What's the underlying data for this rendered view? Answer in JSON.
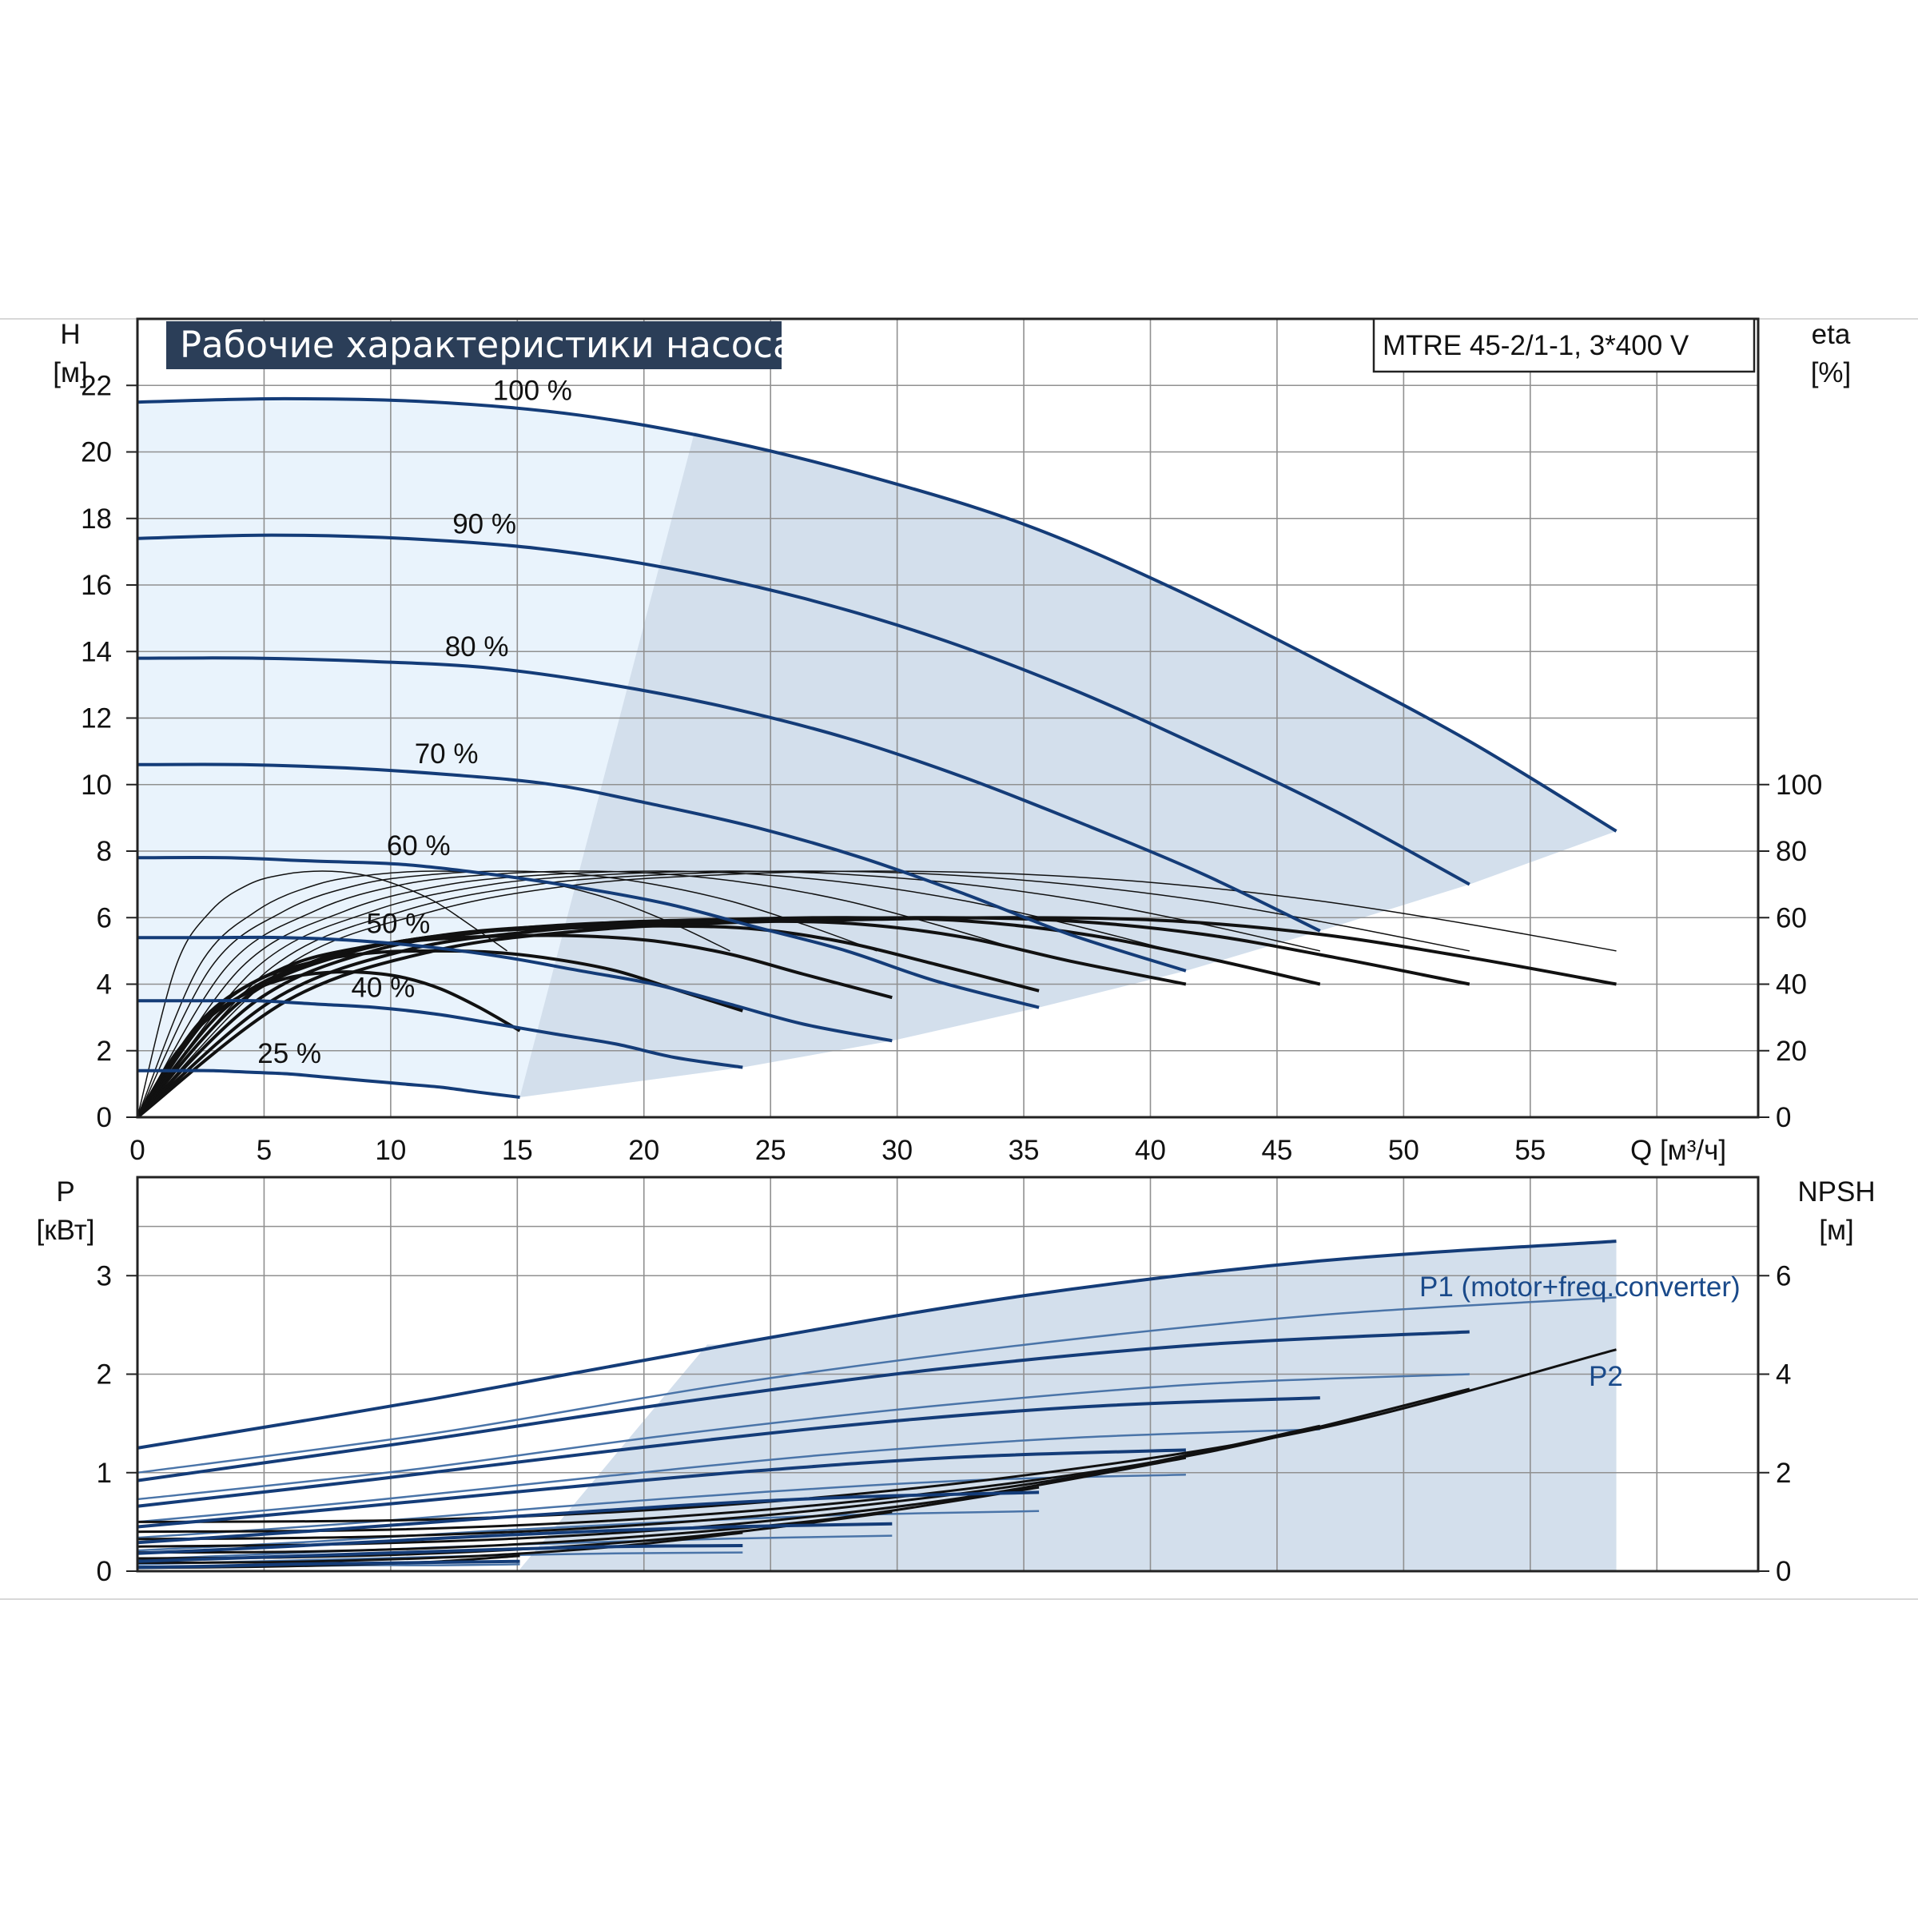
{
  "colors": {
    "curve_blue": "#143c78",
    "area_fill": "#d3dfec",
    "area_fill_light": "#e9f3fc",
    "title_bg": "#2b3e58",
    "grid": "#909090",
    "eff_curve": "#111111",
    "p2_curve": "#111111"
  },
  "chart_data": [
    {
      "id": "head",
      "type": "line",
      "title": "Рабочие характеристики насоса",
      "model": "MTRE 45-2/1-1, 3*400 V",
      "ylabel": "H",
      "yunit": "[м]",
      "y2label": "eta",
      "y2unit": "[%]",
      "xlabel": "Q [м³/ч]",
      "xlim": [
        0,
        64
      ],
      "ylim": [
        0,
        24
      ],
      "y2lim": [
        0,
        100
      ],
      "xticks": [
        "0",
        "5",
        "10",
        "15",
        "20",
        "25",
        "30",
        "35",
        "40",
        "45",
        "50",
        "55"
      ],
      "yticks": [
        "0",
        "2",
        "4",
        "6",
        "8",
        "10",
        "12",
        "14",
        "16",
        "18",
        "20",
        "22"
      ],
      "y2ticks": [
        "0",
        "20",
        "40",
        "60",
        "80",
        "100"
      ],
      "grid": true,
      "head_curves": [
        {
          "name": "100 %",
          "x": [
            0,
            5.8,
            11.7,
            17.5,
            23.4,
            29.2,
            35.1,
            40.9,
            46.7,
            52.6,
            58.4
          ],
          "y": [
            21.5,
            21.6,
            21.5,
            21.1,
            20.3,
            19.2,
            17.8,
            15.9,
            13.7,
            11.3,
            8.6
          ]
        },
        {
          "name": "90 %",
          "x": [
            0,
            5.3,
            10.5,
            15.8,
            21.0,
            26.3,
            31.6,
            36.8,
            42.1,
            47.3,
            52.6
          ],
          "y": [
            17.4,
            17.5,
            17.4,
            17.1,
            16.5,
            15.6,
            14.4,
            12.9,
            11.1,
            9.2,
            7.0
          ]
        },
        {
          "name": "80 %",
          "x": [
            0,
            4.7,
            9.3,
            14.0,
            18.7,
            23.4,
            28.0,
            32.7,
            37.4,
            42.1,
            46.7
          ],
          "y": [
            13.8,
            13.8,
            13.7,
            13.5,
            13.0,
            12.3,
            11.4,
            10.2,
            8.8,
            7.3,
            5.6
          ]
        },
        {
          "name": "70 %",
          "x": [
            0,
            4.1,
            8.2,
            12.3,
            16.4,
            20.4,
            24.5,
            28.6,
            32.7,
            36.8,
            41.4
          ],
          "y": [
            10.6,
            10.6,
            10.5,
            10.3,
            10.0,
            9.4,
            8.7,
            7.8,
            6.7,
            5.5,
            4.4
          ]
        },
        {
          "name": "60 %",
          "x": [
            0,
            3.5,
            7.0,
            10.5,
            14.0,
            17.5,
            21.0,
            24.5,
            28.0,
            31.5,
            35.6
          ],
          "y": [
            7.8,
            7.8,
            7.7,
            7.6,
            7.3,
            6.9,
            6.4,
            5.7,
            5.0,
            4.1,
            3.3
          ]
        },
        {
          "name": "50 %",
          "x": [
            0,
            2.9,
            5.8,
            8.8,
            11.7,
            14.6,
            17.5,
            20.4,
            23.4,
            26.3,
            29.8
          ],
          "y": [
            5.4,
            5.4,
            5.4,
            5.3,
            5.1,
            4.8,
            4.4,
            4.0,
            3.4,
            2.8,
            2.3
          ]
        },
        {
          "name": "40 %",
          "x": [
            0,
            2.4,
            4.7,
            7.1,
            9.4,
            11.8,
            14.2,
            16.5,
            18.9,
            21.2,
            23.9
          ],
          "y": [
            3.5,
            3.5,
            3.5,
            3.4,
            3.3,
            3.1,
            2.8,
            2.5,
            2.2,
            1.8,
            1.5
          ]
        },
        {
          "name": "25 %",
          "x": [
            0,
            1.5,
            3.0,
            4.5,
            6.0,
            7.5,
            9.0,
            10.5,
            12.0,
            13.5,
            15.1
          ],
          "y": [
            1.4,
            1.4,
            1.4,
            1.35,
            1.3,
            1.2,
            1.1,
            1.0,
            0.9,
            0.75,
            0.6
          ]
        }
      ],
      "efficiency_curves": [
        {
          "x": [
            0,
            5.9,
            11.7,
            17.5,
            23.4,
            29.2,
            35.1,
            40.9,
            46.7,
            52.6,
            58.4
          ],
          "y": [
            0,
            35,
            50,
            56,
            58.5,
            59.5,
            60,
            59,
            55,
            48,
            40
          ]
        },
        {
          "x": [
            0,
            5.3,
            10.5,
            15.8,
            21.0,
            26.3,
            31.6,
            36.8,
            42.1,
            47.3,
            52.6
          ],
          "y": [
            0,
            35,
            50,
            56,
            58.5,
            59.5,
            60,
            59,
            55,
            48,
            40
          ]
        },
        {
          "x": [
            0,
            4.7,
            9.3,
            14.0,
            18.7,
            23.4,
            28.0,
            32.7,
            37.4,
            42.1,
            46.7
          ],
          "y": [
            0,
            35,
            50,
            56,
            58.5,
            59.5,
            60,
            59,
            55,
            48,
            40
          ]
        },
        {
          "x": [
            0,
            4.1,
            8.2,
            12.3,
            16.4,
            20.5,
            24.5,
            28.6,
            32.7,
            36.8,
            41.4
          ],
          "y": [
            0,
            35,
            49,
            55,
            57.5,
            58.5,
            59,
            58,
            54,
            47,
            40
          ]
        },
        {
          "x": [
            0,
            3.5,
            7.0,
            10.5,
            14.0,
            17.5,
            21.0,
            24.5,
            28.0,
            31.5,
            35.6
          ],
          "y": [
            0,
            33,
            47,
            53,
            56,
            57,
            57.5,
            56.5,
            52.5,
            46,
            38
          ]
        },
        {
          "x": [
            0,
            2.9,
            5.8,
            8.8,
            11.7,
            14.6,
            17.5,
            20.4,
            23.4,
            26.3,
            29.8
          ],
          "y": [
            0,
            31,
            45,
            51,
            53.5,
            54.5,
            54.5,
            53,
            49,
            43,
            36
          ]
        },
        {
          "x": [
            0,
            2.4,
            4.7,
            7.1,
            9.4,
            11.8,
            14.2,
            16.5,
            18.9,
            21.2,
            23.9
          ],
          "y": [
            0,
            28,
            41,
            47,
            49.5,
            50,
            49.5,
            47.5,
            44,
            38.5,
            32
          ]
        },
        {
          "x": [
            0,
            1.5,
            3.0,
            4.5,
            6.0,
            7.5,
            9.0,
            10.5,
            12.0,
            13.5,
            15.1
          ],
          "y": [
            0,
            19,
            31,
            38,
            42,
            43.5,
            43.5,
            42,
            38.5,
            33,
            26
          ]
        }
      ],
      "thin_curves": [
        {
          "x": [
            0,
            5.8,
            11.7,
            17.5,
            23.4,
            29.2,
            35.1,
            40.9,
            46.7,
            52.6,
            58.4
          ],
          "y": [
            0,
            45,
            62,
            70,
            73,
            74,
            73,
            70,
            65,
            58,
            50
          ]
        },
        {
          "x": [
            0,
            5.3,
            10.5,
            15.8,
            21.0,
            26.3,
            31.6,
            36.8,
            42.1,
            47.3,
            52.6
          ],
          "y": [
            0,
            45,
            62,
            70,
            73,
            74,
            73,
            70,
            65,
            58,
            50
          ]
        },
        {
          "x": [
            0,
            4.7,
            9.3,
            14.0,
            18.7,
            23.4,
            28.0,
            32.7,
            37.4,
            42.1,
            46.7
          ],
          "y": [
            0,
            45,
            62,
            70,
            73,
            74,
            73,
            70,
            65,
            58,
            50
          ]
        },
        {
          "x": [
            0,
            4.1,
            8.2,
            12.3,
            16.4,
            20.5,
            24.5,
            28.6,
            32.7,
            36.8,
            40.9
          ],
          "y": [
            0,
            45,
            62,
            70,
            73,
            74,
            73,
            70,
            65,
            58,
            50
          ]
        },
        {
          "x": [
            0,
            3.5,
            7.0,
            10.5,
            14.0,
            17.5,
            21.0,
            24.5,
            28.0,
            31.5,
            35.0
          ],
          "y": [
            0,
            45,
            62,
            70,
            73,
            74,
            73,
            70,
            65,
            58,
            50
          ]
        },
        {
          "x": [
            0,
            2.9,
            5.8,
            8.8,
            11.7,
            14.6,
            17.5,
            20.4,
            23.4,
            26.3,
            29.2
          ],
          "y": [
            0,
            45,
            62,
            70,
            73,
            74,
            73,
            70,
            65,
            58,
            50
          ]
        },
        {
          "x": [
            0,
            2.4,
            4.7,
            7.1,
            9.4,
            11.8,
            14.2,
            16.5,
            18.9,
            21.2,
            23.4
          ],
          "y": [
            0,
            45,
            62,
            70,
            73,
            74,
            73,
            70,
            65,
            58,
            50
          ]
        },
        {
          "x": [
            0,
            1.5,
            2.9,
            4.4,
            5.8,
            7.3,
            8.8,
            10.2,
            11.7,
            13.1,
            14.6
          ],
          "y": [
            0,
            45,
            62,
            70,
            73,
            74,
            73,
            70,
            65,
            58,
            50
          ]
        }
      ]
    },
    {
      "id": "power",
      "type": "line",
      "ylabel": "P",
      "yunit": "[кВт]",
      "y2label": "NPSH",
      "y2unit": "[м]",
      "xlim": [
        0,
        64
      ],
      "ylim": [
        0,
        4
      ],
      "y2lim": [
        0,
        8
      ],
      "yticks": [
        "0",
        "1",
        "2",
        "3"
      ],
      "y2ticks": [
        "0",
        "2",
        "4",
        "6"
      ],
      "grid": true,
      "series_label_p1": "P1 (motor+freq.converter)",
      "series_label_p2": "P2",
      "p1_curves": [
        {
          "x": [
            0,
            11.7,
            23.4,
            35.1,
            46.7,
            58.4
          ],
          "y": [
            1.25,
            1.75,
            2.3,
            2.8,
            3.15,
            3.35
          ]
        },
        {
          "x": [
            0,
            10.5,
            21.0,
            31.6,
            42.1,
            52.6
          ],
          "y": [
            0.92,
            1.3,
            1.7,
            2.05,
            2.3,
            2.43
          ]
        },
        {
          "x": [
            0,
            9.3,
            18.7,
            28.0,
            37.4,
            46.7
          ],
          "y": [
            0.66,
            0.93,
            1.22,
            1.48,
            1.67,
            1.76
          ]
        },
        {
          "x": [
            0,
            8.2,
            16.4,
            24.5,
            32.7,
            41.4
          ],
          "y": [
            0.45,
            0.64,
            0.84,
            1.02,
            1.16,
            1.23
          ]
        },
        {
          "x": [
            0,
            7.0,
            14.0,
            21.0,
            28.0,
            35.6
          ],
          "y": [
            0.29,
            0.41,
            0.54,
            0.66,
            0.75,
            0.8
          ]
        },
        {
          "x": [
            0,
            5.8,
            11.7,
            17.5,
            23.4,
            29.8
          ],
          "y": [
            0.18,
            0.25,
            0.33,
            0.4,
            0.45,
            0.48
          ]
        },
        {
          "x": [
            0,
            4.7,
            9.4,
            14.2,
            18.9,
            23.9
          ],
          "y": [
            0.1,
            0.14,
            0.18,
            0.22,
            0.25,
            0.26
          ]
        },
        {
          "x": [
            0,
            3.0,
            6.0,
            9.0,
            12.0,
            15.1
          ],
          "y": [
            0.04,
            0.05,
            0.07,
            0.08,
            0.09,
            0.1
          ]
        }
      ],
      "p2_curves": [
        {
          "x": [
            0,
            11.7,
            23.4,
            35.1,
            46.7,
            58.4
          ],
          "y": [
            1.0,
            1.4,
            1.9,
            2.3,
            2.6,
            2.78
          ]
        },
        {
          "x": [
            0,
            10.5,
            21.0,
            31.6,
            42.1,
            52.6
          ],
          "y": [
            0.73,
            1.02,
            1.38,
            1.68,
            1.9,
            2.0
          ]
        },
        {
          "x": [
            0,
            9.3,
            18.7,
            28.0,
            37.4,
            46.7
          ],
          "y": [
            0.5,
            0.72,
            0.97,
            1.2,
            1.36,
            1.44
          ]
        },
        {
          "x": [
            0,
            8.2,
            16.4,
            24.5,
            32.7,
            41.4
          ],
          "y": [
            0.34,
            0.48,
            0.65,
            0.8,
            0.92,
            0.98
          ]
        },
        {
          "x": [
            0,
            7.0,
            14.0,
            21.0,
            28.0,
            35.6
          ],
          "y": [
            0.21,
            0.3,
            0.41,
            0.5,
            0.57,
            0.61
          ]
        },
        {
          "x": [
            0,
            5.8,
            11.7,
            17.5,
            23.4,
            29.8
          ],
          "y": [
            0.12,
            0.18,
            0.24,
            0.29,
            0.33,
            0.36
          ]
        },
        {
          "x": [
            0,
            4.7,
            9.4,
            14.2,
            18.9,
            23.9
          ],
          "y": [
            0.07,
            0.1,
            0.13,
            0.16,
            0.18,
            0.19
          ]
        },
        {
          "x": [
            0,
            3.0,
            6.0,
            9.0,
            12.0,
            15.1
          ],
          "y": [
            0.03,
            0.04,
            0.05,
            0.06,
            0.06,
            0.07
          ]
        }
      ],
      "npsh_curves": [
        {
          "x": [
            0,
            11.7,
            23.4,
            35.1,
            46.7,
            58.4
          ],
          "y": [
            1.0,
            1.05,
            1.35,
            1.95,
            2.9,
            4.5
          ]
        },
        {
          "x": [
            0,
            10.5,
            21.0,
            31.6,
            42.1,
            52.6
          ],
          "y": [
            0.8,
            0.85,
            1.1,
            1.6,
            2.4,
            3.7
          ]
        },
        {
          "x": [
            0,
            9.3,
            18.7,
            28.0,
            37.4,
            46.7
          ],
          "y": [
            0.65,
            0.7,
            0.9,
            1.3,
            1.95,
            2.95
          ]
        },
        {
          "x": [
            0,
            8.2,
            16.4,
            24.5,
            32.7,
            41.4
          ],
          "y": [
            0.5,
            0.55,
            0.7,
            1.0,
            1.5,
            2.3
          ]
        },
        {
          "x": [
            0,
            7.0,
            14.0,
            21.0,
            28.0,
            35.6
          ],
          "y": [
            0.38,
            0.4,
            0.52,
            0.75,
            1.1,
            1.7
          ]
        },
        {
          "x": [
            0,
            5.8,
            11.7,
            17.5,
            23.4,
            29.8
          ],
          "y": [
            0.26,
            0.28,
            0.36,
            0.52,
            0.78,
            1.2
          ]
        },
        {
          "x": [
            0,
            4.7,
            9.4,
            14.2,
            18.9,
            23.9
          ],
          "y": [
            0.17,
            0.18,
            0.23,
            0.33,
            0.5,
            0.78
          ]
        },
        {
          "x": [
            0,
            3.0,
            6.0,
            9.0,
            12.0,
            15.1
          ],
          "y": [
            0.07,
            0.08,
            0.1,
            0.14,
            0.2,
            0.31
          ]
        }
      ]
    }
  ]
}
